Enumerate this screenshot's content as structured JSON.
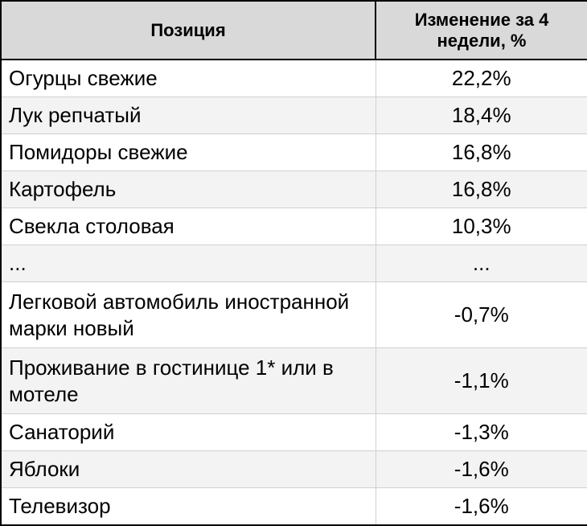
{
  "table": {
    "headers": {
      "position": "Позиция",
      "change": "Изменение за 4 недели, %"
    },
    "rows": [
      {
        "name": "Огурцы свежие",
        "value": "22,2%"
      },
      {
        "name": "Лук репчатый",
        "value": "18,4%"
      },
      {
        "name": "Помидоры свежие",
        "value": "16,8%"
      },
      {
        "name": "Картофель",
        "value": "16,8%"
      },
      {
        "name": "Свекла столовая",
        "value": "10,3%"
      },
      {
        "name": "...",
        "value": "..."
      },
      {
        "name": "Легковой автомобиль иностранной марки новый",
        "value": "-0,7%"
      },
      {
        "name": "Проживание в гостинице 1* или в мотеле",
        "value": "-1,1%"
      },
      {
        "name": "Санаторий",
        "value": "-1,3%"
      },
      {
        "name": "Яблоки",
        "value": "-1,6%"
      },
      {
        "name": "Телевизор",
        "value": "-1,6%"
      }
    ]
  },
  "colors": {
    "header_bg": "#d9d9d9",
    "row_alt_bg": "#f3f3f3",
    "border": "#000000"
  }
}
